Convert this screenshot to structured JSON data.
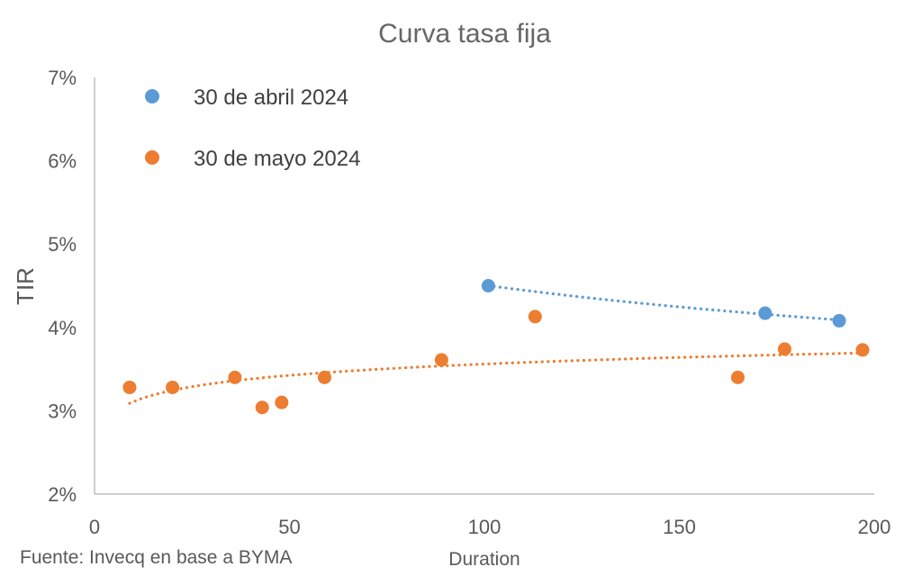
{
  "chart_data": {
    "type": "scatter",
    "title": "Curva tasa fija",
    "xlabel": "Duration",
    "ylabel": "TIR",
    "xlim": [
      0,
      200
    ],
    "ylim": [
      2,
      7
    ],
    "x_ticks": [
      "0",
      "50",
      "100",
      "150",
      "200"
    ],
    "y_ticks": [
      "2%",
      "3%",
      "4%",
      "5%",
      "6%",
      "7%"
    ],
    "grid": false,
    "legend_position": "top-left",
    "trendline": "dotted",
    "series": [
      {
        "name": "30 de abril 2024",
        "color": "#5B9BD5",
        "points": [
          [
            101,
            4.5
          ],
          [
            172,
            4.17
          ],
          [
            191,
            4.08
          ]
        ]
      },
      {
        "name": "30 de mayo 2024",
        "color": "#ED7D31",
        "points": [
          [
            9,
            3.28
          ],
          [
            20,
            3.28
          ],
          [
            36,
            3.4
          ],
          [
            43,
            3.04
          ],
          [
            48,
            3.1
          ],
          [
            59,
            3.4
          ],
          [
            89,
            3.61
          ],
          [
            113,
            4.13
          ],
          [
            165,
            3.4
          ],
          [
            177,
            3.74
          ],
          [
            197,
            3.73
          ]
        ]
      }
    ]
  },
  "source_note": "Fuente: Invecq en base a BYMA"
}
